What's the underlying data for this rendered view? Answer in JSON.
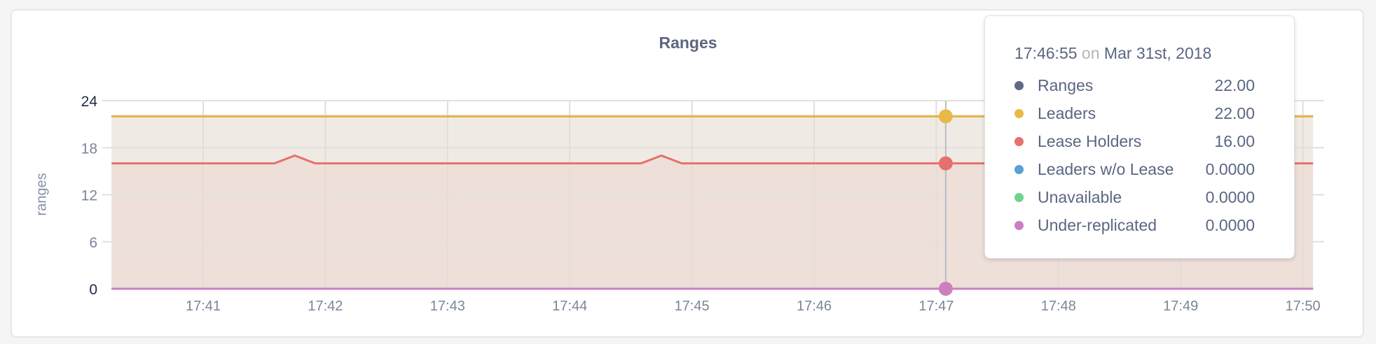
{
  "chart_data": {
    "type": "area",
    "title": "Ranges",
    "ylabel": "ranges",
    "xlabel": "",
    "ylim": [
      0,
      24
    ],
    "xlim": [
      "17:40:15",
      "17:50:05"
    ],
    "y_ticks": [
      "0",
      "6",
      "12",
      "18",
      "24"
    ],
    "x_ticks": [
      "17:41",
      "17:42",
      "17:43",
      "17:44",
      "17:45",
      "17:46",
      "17:47",
      "17:48",
      "17:49",
      "17:50"
    ],
    "grid": true,
    "series": [
      {
        "name": "Ranges",
        "color": "#5f6a87",
        "fill": false,
        "points": [
          [
            "17:40:15",
            22
          ],
          [
            "17:50:05",
            22
          ]
        ]
      },
      {
        "name": "Leaders",
        "color": "#e8b944",
        "fill": "#efebe4",
        "points": [
          [
            "17:40:15",
            22
          ],
          [
            "17:50:05",
            22
          ]
        ]
      },
      {
        "name": "Lease Holders",
        "color": "#e6706b",
        "fill": "#eedfd9",
        "points": [
          [
            "17:40:15",
            16
          ],
          [
            "17:41:35",
            16
          ],
          [
            "17:41:45",
            17
          ],
          [
            "17:41:55",
            16
          ],
          [
            "17:44:35",
            16
          ],
          [
            "17:44:45",
            17
          ],
          [
            "17:44:55",
            16
          ],
          [
            "17:50:05",
            16
          ]
        ]
      },
      {
        "name": "Leaders w/o Lease",
        "color": "#5b9fd3",
        "fill": false,
        "points": [
          [
            "17:40:15",
            0
          ],
          [
            "17:50:05",
            0
          ]
        ]
      },
      {
        "name": "Unavailable",
        "color": "#6fd38c",
        "fill": false,
        "points": [
          [
            "17:40:15",
            0
          ],
          [
            "17:50:05",
            0
          ]
        ]
      },
      {
        "name": "Under-replicated",
        "color": "#cc7fbf",
        "fill": false,
        "points": [
          [
            "17:40:15",
            0
          ],
          [
            "17:50:05",
            0
          ]
        ]
      }
    ]
  },
  "tooltip": {
    "time": "17:46:55",
    "on": "on",
    "date": "Mar 31st, 2018",
    "rows": [
      {
        "label": "Ranges",
        "value": "22.00",
        "color": "#5f6a87"
      },
      {
        "label": "Leaders",
        "value": "22.00",
        "color": "#e8b944"
      },
      {
        "label": "Lease Holders",
        "value": "16.00",
        "color": "#e6706b"
      },
      {
        "label": "Leaders w/o Lease",
        "value": "0.0000",
        "color": "#5b9fd3"
      },
      {
        "label": "Unavailable",
        "value": "0.0000",
        "color": "#6fd38c"
      },
      {
        "label": "Under-replicated",
        "value": "0.0000",
        "color": "#cc7fbf"
      }
    ]
  }
}
